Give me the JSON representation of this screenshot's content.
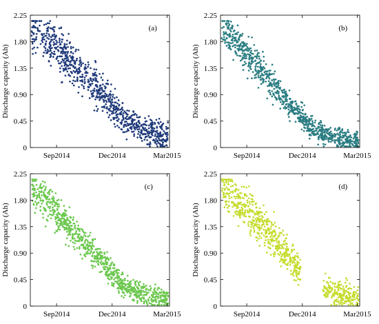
{
  "chart_data": [
    {
      "type": "scatter",
      "panel_label": "(a)",
      "ylabel": "Discharge capacity (Ah)",
      "xlabel": "",
      "x_ticks": [
        "Sep2014",
        "Dec2014",
        "Mar2015"
      ],
      "y_ticks": [
        "0",
        "0.45",
        "0.90",
        "1.35",
        "1.80",
        "2.25"
      ],
      "xlim": [
        "2014-07-20",
        "2015-03-05"
      ],
      "ylim": [
        0,
        2.25
      ],
      "grid": false,
      "color": "#1f3a7a",
      "trend": [
        [
          "2014-07-22",
          2.05
        ],
        [
          "2014-09-01",
          1.7
        ],
        [
          "2014-10-15",
          1.25
        ],
        [
          "2014-11-20",
          0.85
        ],
        [
          "2014-12-20",
          0.5
        ],
        [
          "2015-01-25",
          0.28
        ],
        [
          "2015-03-03",
          0.18
        ]
      ],
      "spread": 0.3,
      "gaps": []
    },
    {
      "type": "scatter",
      "panel_label": "(b)",
      "ylabel": "Discharge capacity (Ah)",
      "xlabel": "",
      "x_ticks": [
        "Sep2014",
        "Dec2014",
        "Mar2015"
      ],
      "y_ticks": [
        "0",
        "0.45",
        "0.90",
        "1.35",
        "1.80",
        "2.25"
      ],
      "xlim": [
        "2014-07-20",
        "2015-03-05"
      ],
      "ylim": [
        0,
        2.25
      ],
      "grid": false,
      "color": "#2a7d82",
      "trend": [
        [
          "2014-07-22",
          2.05
        ],
        [
          "2014-09-01",
          1.6
        ],
        [
          "2014-10-15",
          1.05
        ],
        [
          "2014-11-20",
          0.6
        ],
        [
          "2014-12-20",
          0.3
        ],
        [
          "2015-01-25",
          0.17
        ],
        [
          "2015-03-03",
          0.12
        ]
      ],
      "spread": 0.22,
      "gaps": []
    },
    {
      "type": "scatter",
      "panel_label": "(c)",
      "ylabel": "Discharge capacity (Ah)",
      "xlabel": "",
      "x_ticks": [
        "Sep2014",
        "Dec2014",
        "Mar2015"
      ],
      "y_ticks": [
        "0",
        "0.45",
        "0.90",
        "1.35",
        "1.80",
        "2.25"
      ],
      "xlim": [
        "2014-07-20",
        "2015-03-05"
      ],
      "ylim": [
        0,
        2.25
      ],
      "grid": false,
      "color": "#6cc84f",
      "trend": [
        [
          "2014-07-22",
          2.0
        ],
        [
          "2014-09-01",
          1.6
        ],
        [
          "2014-10-15",
          1.1
        ],
        [
          "2014-11-20",
          0.7
        ],
        [
          "2014-12-20",
          0.35
        ],
        [
          "2015-01-25",
          0.18
        ],
        [
          "2015-03-03",
          0.12
        ]
      ],
      "spread": 0.22,
      "gaps": []
    },
    {
      "type": "scatter",
      "panel_label": "(d)",
      "ylabel": "Discharge capacity (Ah)",
      "xlabel": "",
      "x_ticks": [
        "Sep2014",
        "Dec2014",
        "Mar2015"
      ],
      "y_ticks": [
        "0",
        "0.45",
        "0.90",
        "1.35",
        "1.80",
        "2.25"
      ],
      "xlim": [
        "2014-07-20",
        "2015-03-05"
      ],
      "ylim": [
        0,
        2.25
      ],
      "grid": false,
      "color": "#c6dc2e",
      "trend": [
        [
          "2014-07-22",
          2.05
        ],
        [
          "2014-09-01",
          1.65
        ],
        [
          "2014-10-15",
          1.15
        ],
        [
          "2014-11-20",
          0.7
        ],
        [
          "2014-12-20",
          0.35
        ],
        [
          "2015-01-25",
          0.2
        ],
        [
          "2015-03-03",
          0.15
        ]
      ],
      "spread": 0.28,
      "gaps": [
        [
          "2014-11-28",
          "2015-01-04"
        ]
      ]
    }
  ]
}
